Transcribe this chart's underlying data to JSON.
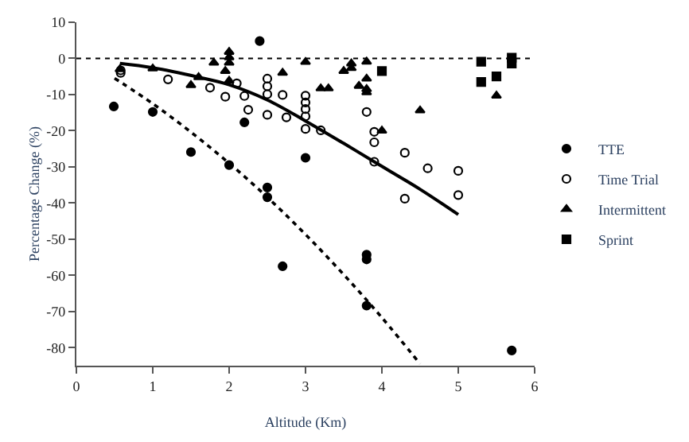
{
  "chart_data": {
    "type": "scatter",
    "xlabel": "Altitude (Km)",
    "ylabel": "Percentage Change (%)",
    "xlim": [
      0,
      6
    ],
    "xticks": [
      0,
      1,
      2,
      3,
      4,
      5,
      6
    ],
    "ylim": [
      -85,
      10
    ],
    "yticks": [
      10,
      0,
      -10,
      -20,
      -30,
      -40,
      -50,
      -60,
      -70,
      -80
    ],
    "legend": "right",
    "ref_lines": [
      {
        "axis": "y",
        "value": 0,
        "line_style": "dotted",
        "color": "#000000"
      }
    ],
    "series": [
      {
        "name": "TTE",
        "color": "#000000",
        "marker": "circle",
        "x": [
          0.49,
          1.0,
          1.5,
          2.0,
          2.2,
          2.4,
          2.5,
          2.5,
          2.7,
          3.0,
          3.8,
          3.8,
          3.8,
          5.7
        ],
        "values": [
          -13.3,
          -14.8,
          -25.9,
          -29.5,
          -17.7,
          4.8,
          -35.7,
          -38.4,
          -57.5,
          -27.5,
          -54.3,
          -55.6,
          -68.4,
          -80.8
        ]
      },
      {
        "name": "Time Trial",
        "color": "#000000",
        "marker": "circle-open",
        "x": [
          0.58,
          0.58,
          1.2,
          1.75,
          1.95,
          2.1,
          2.2,
          2.25,
          2.5,
          2.5,
          2.5,
          2.5,
          2.7,
          2.75,
          3.0,
          3.0,
          3.0,
          3.0,
          3.0,
          3.2,
          3.8,
          3.9,
          3.9,
          3.9,
          4.3,
          4.3,
          4.6,
          5.0,
          5.0
        ],
        "values": [
          -3.3,
          -4.0,
          -5.8,
          -8.1,
          -10.6,
          -6.9,
          -10.4,
          -14.2,
          -5.6,
          -7.7,
          -9.9,
          -15.6,
          -10.1,
          -16.3,
          -10.3,
          -12.2,
          -14.0,
          -16.0,
          -19.5,
          -19.9,
          -14.8,
          -20.3,
          -23.2,
          -28.6,
          -26.1,
          -38.8,
          -30.4,
          -31.1,
          -37.8
        ]
      },
      {
        "name": "Intermittent",
        "color": "#000000",
        "marker": "triangle",
        "x": [
          0.57,
          1.0,
          1.5,
          1.6,
          1.8,
          1.95,
          2.0,
          2.0,
          2.0,
          2.0,
          2.7,
          3.0,
          3.2,
          3.3,
          3.5,
          3.6,
          3.6,
          3.7,
          3.8,
          3.8,
          3.8,
          3.8,
          4.0,
          4.5,
          5.5
        ],
        "values": [
          -3.0,
          -2.8,
          -7.4,
          -5.2,
          -1.2,
          -3.5,
          -6.2,
          1.8,
          0.3,
          -1.2,
          -4.0,
          -1.0,
          -8.3,
          -8.3,
          -3.5,
          -1.4,
          -2.7,
          -7.6,
          -0.9,
          -5.6,
          -8.5,
          -9.4,
          -20.0,
          -14.4,
          -10.3
        ]
      },
      {
        "name": "Sprint",
        "color": "#000000",
        "marker": "square",
        "x": [
          4.0,
          5.3,
          5.3,
          5.5,
          5.7,
          5.7
        ],
        "values": [
          -3.5,
          -0.9,
          -6.5,
          -5.0,
          0.2,
          -1.4
        ]
      },
      {
        "type": "line",
        "color": "#000000",
        "marker": "none",
        "line_style": "dotted",
        "x": [
          0.5,
          1.0,
          1.5,
          2.0,
          2.5,
          3.0,
          3.5,
          4.0,
          4.5
        ],
        "values": [
          -5.5,
          -12.5,
          -20.4,
          -29.0,
          -38.4,
          -48.7,
          -59.8,
          -71.7,
          -84.5
        ]
      },
      {
        "type": "line",
        "color": "#000000",
        "marker": "none",
        "line_style": "solid",
        "x": [
          0.57,
          1.0,
          1.6,
          2.0,
          2.5,
          3.0,
          3.5,
          3.9,
          4.5,
          5.0
        ],
        "values": [
          -1.4,
          -2.6,
          -5.2,
          -7.3,
          -11.5,
          -17.3,
          -23.5,
          -28.6,
          -36.2,
          -43.2
        ]
      }
    ]
  }
}
